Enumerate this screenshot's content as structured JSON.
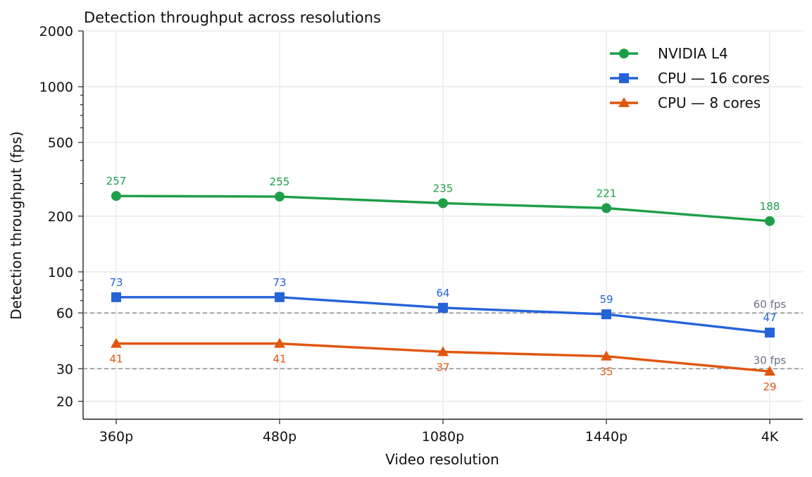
{
  "chart_data": {
    "type": "line",
    "title": "Detection throughput across resolutions",
    "xlabel": "Video resolution",
    "ylabel": "Detection throughput (fps)",
    "categories": [
      "360p",
      "480p",
      "1080p",
      "1440p",
      "4K"
    ],
    "y_scale": "log",
    "ylim": [
      16,
      2000
    ],
    "y_ticks": [
      20,
      30,
      60,
      100,
      200,
      500,
      1000,
      2000
    ],
    "y_tick_labels": [
      "20",
      "30",
      "60",
      "100",
      "200",
      "500",
      "1000",
      "2000"
    ],
    "grid": true,
    "legend_position": "top-right",
    "series": [
      {
        "name": "NVIDIA L4",
        "values": [
          257,
          255,
          235,
          221,
          188
        ],
        "labels": [
          "257",
          "255",
          "235",
          "221",
          "188"
        ],
        "color": "#1e9e4a",
        "marker": "circle",
        "label_position": "above"
      },
      {
        "name": "CPU — 16 cores",
        "values": [
          73,
          73,
          64,
          59,
          47
        ],
        "labels": [
          "73",
          "73",
          "64",
          "59",
          "47"
        ],
        "color": "#2563d9",
        "marker": "square",
        "label_position": "above"
      },
      {
        "name": "CPU — 8 cores",
        "values": [
          41,
          41,
          37,
          35,
          29
        ],
        "labels": [
          "41",
          "41",
          "37",
          "35",
          "29"
        ],
        "color": "#e0560f",
        "marker": "triangle",
        "label_position": "below"
      }
    ],
    "reference_lines": [
      {
        "value": 60,
        "label": "60 fps",
        "color": "#8a949e"
      },
      {
        "value": 30,
        "label": "30 fps",
        "color": "#8a949e"
      }
    ]
  }
}
